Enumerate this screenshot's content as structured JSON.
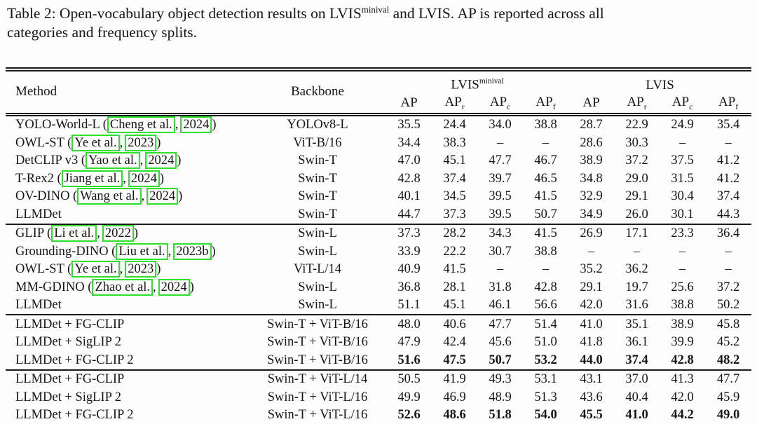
{
  "caption": {
    "line1_before_sup": "Table 2: Open-vocabulary object detection results on LVIS",
    "line1_sup": "minival",
    "line1_after_sup": " and LVIS. AP is reported across all",
    "line2": "categories and frequency splits."
  },
  "colors": {
    "link_box_green": "#2ce02c",
    "text": "#161616",
    "rule": "#1a1a1a"
  },
  "table": {
    "header": {
      "method": "Method",
      "backbone": "Backbone",
      "span_minival_base": "LVIS",
      "span_minival_sup": "minival",
      "span_lvis": "LVIS",
      "metrics": [
        {
          "base": "AP",
          "sub": ""
        },
        {
          "base": "AP",
          "sub": "r"
        },
        {
          "base": "AP",
          "sub": "c"
        },
        {
          "base": "AP",
          "sub": "f"
        },
        {
          "base": "AP",
          "sub": ""
        },
        {
          "base": "AP",
          "sub": "r"
        },
        {
          "base": "AP",
          "sub": "c"
        },
        {
          "base": "AP",
          "sub": "f"
        }
      ]
    },
    "groups": [
      {
        "rows": [
          {
            "method_pre": "YOLO-World-L (",
            "cite_author": "Cheng et al.",
            "cite_comma": ",",
            "cite_year": "2024",
            "method_post": ")",
            "backbone": "YOLOv8-L",
            "bold": false,
            "values": [
              "35.5",
              "24.4",
              "34.0",
              "38.8",
              "28.7",
              "22.9",
              "24.9",
              "35.4"
            ]
          },
          {
            "method_pre": "OWL-ST (",
            "cite_author": "Ye et al.",
            "cite_comma": ",",
            "cite_year": "2023",
            "method_post": ")",
            "backbone": "ViT-B/16",
            "bold": false,
            "values": [
              "34.4",
              "38.3",
              "–",
              "–",
              "28.6",
              "30.3",
              "–",
              "–"
            ]
          },
          {
            "method_pre": "DetCLIP v3 (",
            "cite_author": "Yao et al.",
            "cite_comma": ",",
            "cite_year": "2024",
            "method_post": ")",
            "backbone": "Swin-T",
            "bold": false,
            "values": [
              "47.0",
              "45.1",
              "47.7",
              "46.7",
              "38.9",
              "37.2",
              "37.5",
              "41.2"
            ]
          },
          {
            "method_pre": "T-Rex2 (",
            "cite_author": "Jiang et al.",
            "cite_comma": ",",
            "cite_year": "2024",
            "method_post": ")",
            "backbone": "Swin-T",
            "bold": false,
            "values": [
              "42.8",
              "37.4",
              "39.7",
              "46.5",
              "34.8",
              "29.0",
              "31.5",
              "41.2"
            ]
          },
          {
            "method_pre": "OV-DINO (",
            "cite_author": "Wang et al.",
            "cite_comma": ",",
            "cite_year": "2024",
            "method_post": ")",
            "backbone": "Swin-T",
            "bold": false,
            "values": [
              "40.1",
              "34.5",
              "39.5",
              "41.5",
              "32.9",
              "29.1",
              "30.4",
              "37.4"
            ]
          },
          {
            "method_pre": "LLMDet",
            "backbone": "Swin-T",
            "bold": false,
            "values": [
              "44.7",
              "37.3",
              "39.5",
              "50.7",
              "34.9",
              "26.0",
              "30.1",
              "44.3"
            ]
          }
        ]
      },
      {
        "rows": [
          {
            "method_pre": "GLIP (",
            "cite_author": "Li et al.",
            "cite_comma": ",",
            "cite_year": "2022",
            "method_post": ")",
            "backbone": "Swin-L",
            "bold": false,
            "values": [
              "37.3",
              "28.2",
              "34.3",
              "41.5",
              "26.9",
              "17.1",
              "23.3",
              "36.4"
            ]
          },
          {
            "method_pre": "Grounding-DINO (",
            "cite_author": "Liu et al.",
            "cite_comma": ",",
            "cite_year": "2023b",
            "method_post": ")",
            "backbone": "Swin-L",
            "bold": false,
            "values": [
              "33.9",
              "22.2",
              "30.7",
              "38.8",
              "–",
              "–",
              "–",
              "–"
            ]
          },
          {
            "method_pre": "OWL-ST (",
            "cite_author": "Ye et al.",
            "cite_comma": ",",
            "cite_year": "2023",
            "method_post": ")",
            "backbone": "ViT-L/14",
            "bold": false,
            "values": [
              "40.9",
              "41.5",
              "–",
              "–",
              "35.2",
              "36.2",
              "–",
              "–"
            ]
          },
          {
            "method_pre": "MM-GDINO (",
            "cite_author": "Zhao et al.",
            "cite_comma": ",",
            "cite_year": "2024",
            "method_post": ")",
            "backbone": "Swin-L",
            "bold": false,
            "values": [
              "36.8",
              "28.1",
              "31.8",
              "42.8",
              "29.1",
              "19.7",
              "25.6",
              "37.2"
            ]
          },
          {
            "method_pre": "LLMDet",
            "backbone": "Swin-L",
            "bold": false,
            "values": [
              "51.1",
              "45.1",
              "46.1",
              "56.6",
              "42.0",
              "31.6",
              "38.8",
              "50.2"
            ]
          }
        ]
      },
      {
        "rows": [
          {
            "method_pre": "LLMDet + FG-CLIP",
            "backbone": "Swin-T + ViT-B/16",
            "bold": false,
            "values": [
              "48.0",
              "40.6",
              "47.7",
              "51.4",
              "41.0",
              "35.1",
              "38.9",
              "45.8"
            ]
          },
          {
            "method_pre": "LLMDet + SigLIP 2",
            "backbone": "Swin-T + ViT-B/16",
            "bold": false,
            "values": [
              "47.9",
              "42.4",
              "45.6",
              "51.0",
              "41.8",
              "36.1",
              "39.9",
              "45.2"
            ]
          },
          {
            "method_pre": "LLMDet + FG-CLIP 2",
            "backbone": "Swin-T + ViT-B/16",
            "bold": true,
            "values": [
              "51.6",
              "47.5",
              "50.7",
              "53.2",
              "44.0",
              "37.4",
              "42.8",
              "48.2"
            ]
          }
        ]
      },
      {
        "rows": [
          {
            "method_pre": "LLMDet + FG-CLIP",
            "backbone": "Swin-T + ViT-L/14",
            "bold": false,
            "values": [
              "50.5",
              "41.9",
              "49.3",
              "53.1",
              "43.1",
              "37.0",
              "41.3",
              "47.7"
            ]
          },
          {
            "method_pre": "LLMDet + SigLIP 2",
            "backbone": "Swin-T + ViT-L/16",
            "bold": false,
            "values": [
              "49.9",
              "46.9",
              "48.9",
              "51.3",
              "43.6",
              "40.4",
              "42.0",
              "45.9"
            ]
          },
          {
            "method_pre": "LLMDet + FG-CLIP 2",
            "backbone": "Swin-T + ViT-L/16",
            "bold": true,
            "values": [
              "52.6",
              "48.6",
              "51.8",
              "54.0",
              "45.5",
              "41.0",
              "44.2",
              "49.0"
            ]
          }
        ]
      }
    ]
  }
}
